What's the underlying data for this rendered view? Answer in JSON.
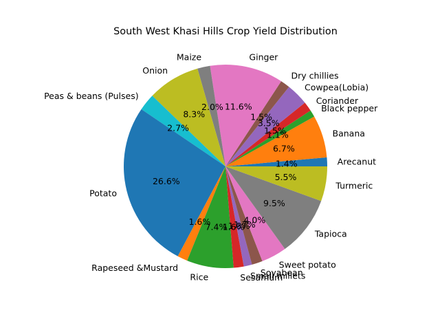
{
  "chart_data": {
    "type": "pie",
    "title": "South West Khasi Hills Crop Yield Distribution",
    "start_angle_deg": 0,
    "direction": "counterclockwise",
    "slices": [
      {
        "label": "Arecanut",
        "value": 1.4,
        "pct_label": "1.4%",
        "color": "#1f77b4"
      },
      {
        "label": "Banana",
        "value": 6.7,
        "pct_label": "6.7%",
        "color": "#ff7f0e"
      },
      {
        "label": "Black pepper",
        "value": 1.1,
        "pct_label": "1.1%",
        "color": "#2ca02c"
      },
      {
        "label": "Coriander",
        "value": 1.5,
        "pct_label": "1.5%",
        "color": "#d62728"
      },
      {
        "label": "Cowpea(Lobia)",
        "value": 3.5,
        "pct_label": "3.5%",
        "color": "#9467bd"
      },
      {
        "label": "Dry chillies",
        "value": 1.5,
        "pct_label": "1.5%",
        "color": "#8c564b"
      },
      {
        "label": "Ginger",
        "value": 11.6,
        "pct_label": "11.6%",
        "color": "#e377c2"
      },
      {
        "label": "Maize",
        "value": 2.0,
        "pct_label": "2.0%",
        "color": "#7f7f7f"
      },
      {
        "label": "Onion",
        "value": 8.3,
        "pct_label": "8.3%",
        "color": "#bcbd22"
      },
      {
        "label": "Peas & beans (Pulses)",
        "value": 2.7,
        "pct_label": "2.7%",
        "color": "#17becf"
      },
      {
        "label": "Potato",
        "value": 26.6,
        "pct_label": "26.6%",
        "color": "#1f77b4"
      },
      {
        "label": "Rapeseed &Mustard",
        "value": 1.6,
        "pct_label": "1.6%",
        "color": "#ff7f0e"
      },
      {
        "label": "Rice",
        "value": 7.4,
        "pct_label": "7.4%",
        "color": "#2ca02c"
      },
      {
        "label": "Sesamum",
        "value": 1.6,
        "pct_label": "1.6%",
        "color": "#d62728"
      },
      {
        "label": "Small millets",
        "value": 1.3,
        "pct_label": "1.3%",
        "color": "#9467bd"
      },
      {
        "label": "Soyabean",
        "value": 1.7,
        "pct_label": "1.7%",
        "color": "#8c564b"
      },
      {
        "label": "Sweet potato",
        "value": 4.0,
        "pct_label": "4.0%",
        "color": "#e377c2"
      },
      {
        "label": "Tapioca",
        "value": 9.5,
        "pct_label": "9.5%",
        "color": "#7f7f7f"
      },
      {
        "label": "Turmeric",
        "value": 5.5,
        "pct_label": "5.5%",
        "color": "#bcbd22"
      }
    ]
  }
}
